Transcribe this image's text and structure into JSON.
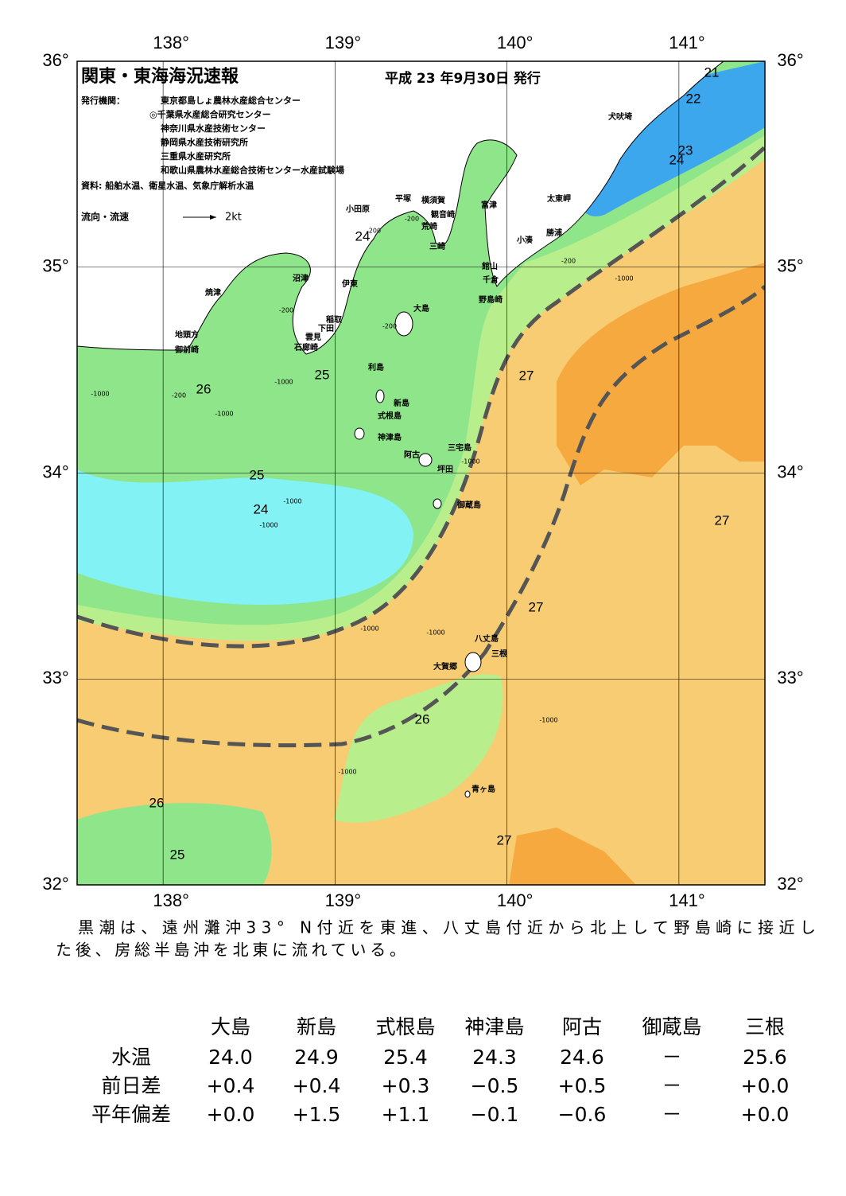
{
  "header": {
    "title": "関東・東海海況速報",
    "date": "平成 23 年9月30日 発行",
    "issuer_label": "発行機関：",
    "issuers": [
      "東京都島しょ農林水産総合センター",
      "◎千葉県水産総合研究センター",
      "神奈川県水産技術センター",
      "静岡県水産技術研究所",
      "三重県水産研究所",
      "和歌山県農林水産総合技術センター水産試験場"
    ],
    "source": "資料: 船舶水温、衛星水温、気象庁解析水温",
    "legend": {
      "label": "流向・流速",
      "scale": "2kt"
    }
  },
  "map": {
    "lon_ticks": [
      {
        "value": 138,
        "label": "138°"
      },
      {
        "value": 139,
        "label": "139°"
      },
      {
        "value": 140,
        "label": "140°"
      },
      {
        "value": 141,
        "label": "141°"
      }
    ],
    "lat_ticks": [
      {
        "value": 36,
        "label": "36°"
      },
      {
        "value": 35,
        "label": "35°"
      },
      {
        "value": 34,
        "label": "34°"
      },
      {
        "value": 33,
        "label": "33°"
      },
      {
        "value": 32,
        "label": "32°"
      }
    ],
    "places": [
      "犬吠埼",
      "太東岬",
      "勝浦",
      "小湊",
      "富津",
      "館山",
      "千倉",
      "野島崎",
      "横須賀",
      "観音崎",
      "荒崎",
      "三崎",
      "平塚",
      "小田原",
      "沼津",
      "伊東",
      "稲取",
      "下田",
      "雲見",
      "石廊崎",
      "焼津",
      "地頭方",
      "御前崎",
      "大島",
      "利島",
      "新島",
      "式根島",
      "神津島",
      "三宅島",
      "阿古",
      "坪田",
      "御蔵島",
      "八丈島",
      "三根",
      "大賀郷",
      "青ヶ島"
    ],
    "contour_labels": [
      21,
      22,
      23,
      24,
      24,
      25,
      26,
      25,
      24,
      27,
      27,
      27,
      26,
      26,
      25,
      27
    ],
    "depth_labels": [
      "-200",
      "-200",
      "-200",
      "-200",
      "-1000",
      "-1000",
      "-200",
      "-1000",
      "-1000",
      "-200",
      "-1000",
      "-1000",
      "-1000",
      "-1000",
      "-1000",
      "-1000",
      "-1000"
    ]
  },
  "description": [
    "黒潮は、遠州灘沖33° N付近を東進、八丈島付近から北上して野島崎に接近し",
    "た後、房総半島沖を北東に流れている。"
  ],
  "table": {
    "columns": [
      "大島",
      "新島",
      "式根島",
      "神津島",
      "阿古",
      "御蔵島",
      "三根"
    ],
    "rows": [
      {
        "label": "水温",
        "values": [
          "24.0",
          "24.9",
          "25.4",
          "24.3",
          "24.6",
          "－",
          "25.6"
        ]
      },
      {
        "label": "前日差",
        "values": [
          "+0.4",
          "+0.4",
          "+0.3",
          "−0.5",
          "+0.5",
          "－",
          "+0.0"
        ]
      },
      {
        "label": "平年偏差",
        "values": [
          "+0.0",
          "+1.5",
          "+1.1",
          "−0.1",
          "−0.6",
          "－",
          "+0.0"
        ]
      }
    ]
  }
}
